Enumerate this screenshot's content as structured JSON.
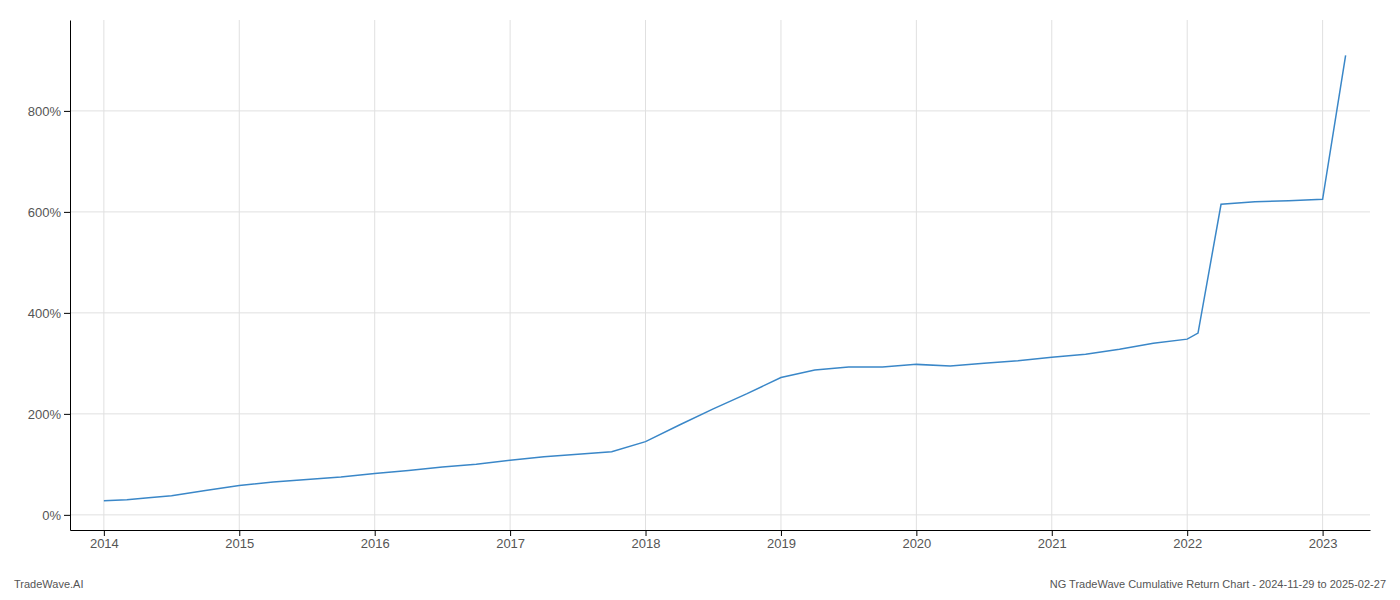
{
  "chart_data": {
    "type": "line",
    "x": [
      2014.0,
      2014.17,
      2014.33,
      2014.5,
      2014.75,
      2015.0,
      2015.25,
      2015.5,
      2015.75,
      2016.0,
      2016.25,
      2016.5,
      2016.75,
      2017.0,
      2017.25,
      2017.5,
      2017.75,
      2018.0,
      2018.25,
      2018.5,
      2018.75,
      2019.0,
      2019.25,
      2019.5,
      2019.75,
      2020.0,
      2020.25,
      2020.5,
      2020.75,
      2021.0,
      2021.25,
      2021.5,
      2021.75,
      2022.0,
      2022.08,
      2022.25,
      2022.5,
      2022.75,
      2023.0,
      2023.17
    ],
    "values": [
      28,
      30,
      34,
      38,
      48,
      58,
      65,
      70,
      75,
      82,
      88,
      95,
      100,
      108,
      115,
      120,
      125,
      145,
      178,
      210,
      240,
      272,
      287,
      293,
      293,
      298,
      295,
      300,
      305,
      312,
      318,
      328,
      340,
      348,
      360,
      615,
      620,
      622,
      625,
      910
    ],
    "color": "#3a87c8",
    "xlim": [
      2013.75,
      2023.35
    ],
    "ylim": [
      -30,
      980
    ],
    "xticks": [
      2014,
      2015,
      2016,
      2017,
      2018,
      2019,
      2020,
      2021,
      2022,
      2023
    ],
    "yticks": [
      {
        "value": 0,
        "label": "0%"
      },
      {
        "value": 200,
        "label": "200%"
      },
      {
        "value": 400,
        "label": "400%"
      },
      {
        "value": 600,
        "label": "600%"
      },
      {
        "value": 800,
        "label": "800%"
      }
    ],
    "grid": true,
    "annotations": [
      "TradeWave.AI",
      "NG TradeWave Cumulative Return Chart - 2024-11-29 to 2025-02-27"
    ]
  }
}
